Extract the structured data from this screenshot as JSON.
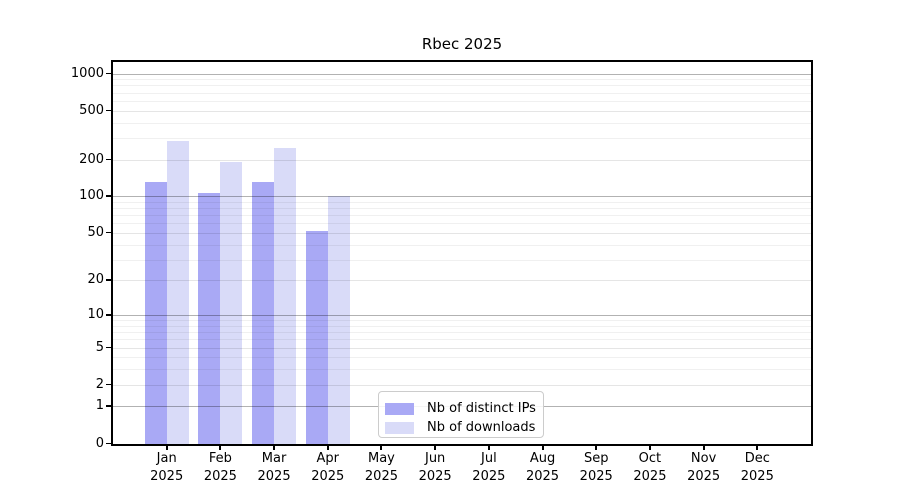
{
  "chart_data": {
    "type": "bar",
    "title": "Rbec 2025",
    "month_labels": [
      "Jan",
      "Feb",
      "Mar",
      "Apr",
      "May",
      "Jun",
      "Jul",
      "Aug",
      "Sep",
      "Oct",
      "Nov",
      "Dec"
    ],
    "year_label": "2025",
    "categories": [
      "Jan 2025",
      "Feb 2025",
      "Mar 2025",
      "Apr 2025",
      "May 2025",
      "Jun 2025",
      "Jul 2025",
      "Aug 2025",
      "Sep 2025",
      "Oct 2025",
      "Nov 2025",
      "Dec 2025"
    ],
    "series": [
      {
        "name": "Nb of distinct IPs",
        "color": "#a9a9f5",
        "values": [
          130,
          107,
          130,
          52,
          0,
          0,
          0,
          0,
          0,
          0,
          0,
          0
        ]
      },
      {
        "name": "Nb of downloads",
        "color": "#d9dbf8",
        "values": [
          285,
          190,
          250,
          100,
          0,
          0,
          0,
          0,
          0,
          0,
          0,
          0
        ]
      }
    ],
    "y_scale": "log10(value+1)",
    "y_ticks": [
      0,
      1,
      2,
      5,
      10,
      20,
      50,
      100,
      200,
      500,
      1000
    ],
    "y_decade_ticks": [
      1,
      10,
      100,
      1000
    ],
    "y_minor_ticks": [
      3,
      4,
      6,
      7,
      8,
      9,
      30,
      40,
      60,
      70,
      80,
      90,
      300,
      400,
      600,
      700,
      800,
      900
    ],
    "ylim": [
      0,
      1275
    ],
    "grid": "horizontal",
    "legend_position": "inside-bottom-left-of-center"
  },
  "colors": {
    "background": "#ffffff",
    "axis": "#000000",
    "grid_decade": "rgba(0,0,0,0.30)",
    "grid_mid": "rgba(0,0,0,0.10)",
    "grid_minor": "rgba(0,0,0,0.06)"
  }
}
